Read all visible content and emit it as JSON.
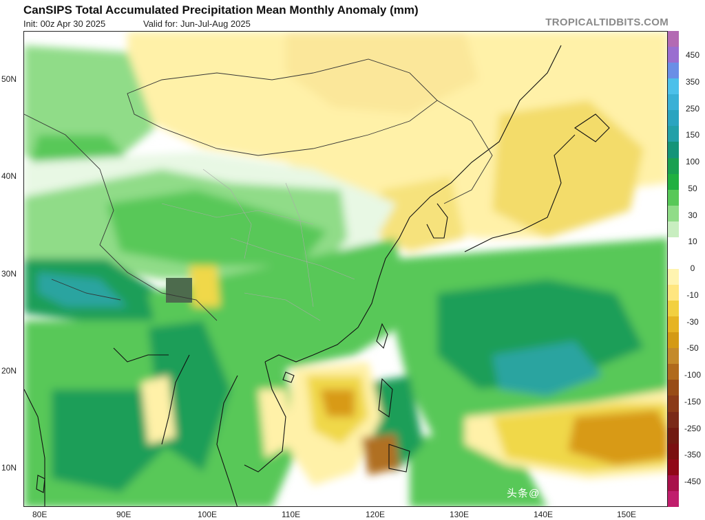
{
  "header": {
    "title": "CanSIPS Total Accumulated Precipitation Mean Monthly Anomaly (mm)",
    "init": "Init: 00z Apr 30 2025",
    "valid": "Valid for: Jun-Jul-Aug 2025",
    "brand": "TROPICALTIDBITS.COM"
  },
  "axes": {
    "lat": [
      "50N",
      "40N",
      "30N",
      "20N",
      "10N"
    ],
    "lon": [
      "80E",
      "90E",
      "100E",
      "110E",
      "120E",
      "130E",
      "140E",
      "150E"
    ]
  },
  "colorbar": {
    "labels": [
      "450",
      "350",
      "250",
      "150",
      "100",
      "50",
      "30",
      "10",
      "0",
      "-10",
      "-30",
      "-50",
      "-100",
      "-150",
      "-250",
      "-350",
      "-450"
    ],
    "colors": [
      "#b36ab3",
      "#9a6ed0",
      "#6a8ee6",
      "#4cc0ea",
      "#3ab0d6",
      "#2aa4c0",
      "#22a0a8",
      "#149478",
      "#1aa050",
      "#20b040",
      "#58c858",
      "#90dc88",
      "#c8eec0",
      "#ffffff",
      "#ffffff",
      "#fff4b0",
      "#ffe680",
      "#f2d040",
      "#e6b422",
      "#d49a14",
      "#c48a2a",
      "#b06a1c",
      "#984c16",
      "#8a3a18",
      "#7a2a18",
      "#701a10",
      "#7a1010",
      "#900818",
      "#a8104a",
      "#c01e6c"
    ]
  },
  "map_layer_colors": {
    "green_light": "#c8eec0",
    "green_mid": "#58c858",
    "green_dark": "#1f9e58",
    "teal": "#2aa4a0",
    "yellow_light": "#fff1a8",
    "yellow": "#f0d84a",
    "orange": "#d89a18",
    "brown": "#b07020"
  },
  "watermark": "头条@"
}
